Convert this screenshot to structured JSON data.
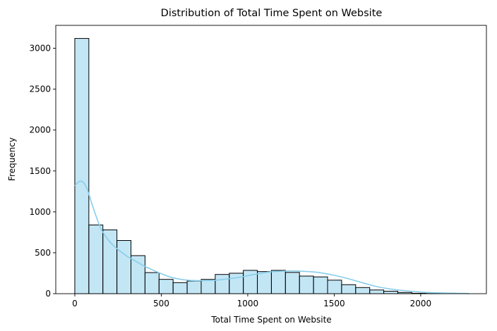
{
  "chart_data": {
    "type": "bar",
    "title": "Distribution of Total Time Spent on Website",
    "xlabel": "Total Time Spent on Website",
    "ylabel": "Frequency",
    "xlim": [
      -110,
      2380
    ],
    "ylim": [
      0,
      3280
    ],
    "xticks": [
      0,
      500,
      1000,
      1500,
      2000
    ],
    "yticks": [
      0,
      500,
      1000,
      1500,
      2000,
      2500,
      3000
    ],
    "bin_width": 81.2,
    "bin_start": 0,
    "values": [
      3120,
      840,
      780,
      650,
      465,
      258,
      175,
      135,
      155,
      175,
      235,
      250,
      285,
      270,
      285,
      260,
      215,
      205,
      165,
      110,
      75,
      45,
      30,
      15,
      5,
      2
    ],
    "bar_fill": "#87ceeb",
    "bar_opacity": 0.5,
    "bar_edge": "#000000",
    "kde_color": "#87ceeb",
    "kde": {
      "x": [
        0,
        25,
        50,
        75,
        100,
        150,
        200,
        250,
        300,
        350,
        400,
        450,
        500,
        550,
        600,
        650,
        700,
        750,
        800,
        850,
        900,
        950,
        1000,
        1050,
        1100,
        1150,
        1200,
        1250,
        1300,
        1350,
        1400,
        1450,
        1500,
        1550,
        1600,
        1650,
        1700,
        1750,
        1800,
        1850,
        1900,
        1950,
        2000,
        2050,
        2100,
        2150,
        2200,
        2250,
        2280
      ],
      "y": [
        1320,
        1370,
        1360,
        1260,
        1090,
        800,
        640,
        540,
        460,
        400,
        340,
        290,
        245,
        205,
        180,
        165,
        160,
        160,
        163,
        172,
        185,
        200,
        220,
        240,
        258,
        270,
        275,
        278,
        276,
        270,
        262,
        245,
        225,
        200,
        172,
        142,
        112,
        85,
        65,
        50,
        38,
        28,
        20,
        14,
        10,
        7,
        5,
        3,
        2
      ]
    }
  }
}
